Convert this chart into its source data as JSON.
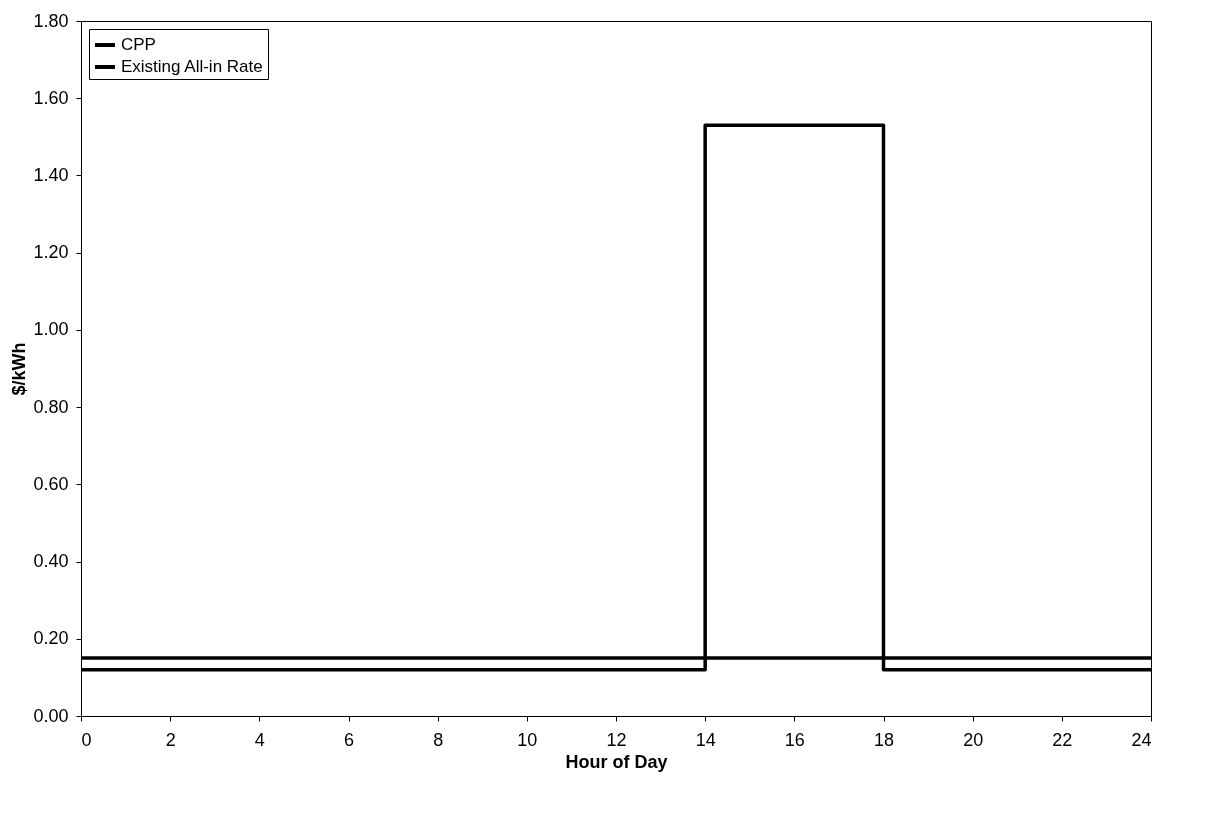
{
  "chart_data": {
    "type": "step",
    "xlabel": "Hour of Day",
    "ylabel": "$/kWh",
    "series": [
      {
        "name": "CPP",
        "color": "#000000",
        "x": [
          0,
          14,
          18,
          24
        ],
        "values": [
          0.12,
          1.53,
          0.12,
          0.12
        ]
      },
      {
        "name": "Existing All-in Rate",
        "color": "#000000",
        "x": [
          0,
          24
        ],
        "values": [
          0.15,
          0.15
        ]
      }
    ],
    "xlim": [
      0,
      24
    ],
    "xticks": [
      0,
      2,
      4,
      6,
      8,
      10,
      12,
      14,
      16,
      18,
      20,
      22,
      24
    ],
    "ylim": [
      0,
      1.8
    ],
    "yticks": [
      {
        "value": 0,
        "label": "0.00"
      },
      {
        "value": 0.2,
        "label": "0.20"
      },
      {
        "value": 0.4,
        "label": "0.40"
      },
      {
        "value": 0.6,
        "label": "0.60"
      },
      {
        "value": 0.8,
        "label": "0.80"
      },
      {
        "value": 1,
        "label": "1.00"
      },
      {
        "value": 1.2,
        "label": "1.20"
      },
      {
        "value": 1.4,
        "label": "1.40"
      },
      {
        "value": 1.6,
        "label": "1.60"
      },
      {
        "value": 1.8,
        "label": "1.80"
      }
    ],
    "legend": "top left",
    "grid": false
  }
}
